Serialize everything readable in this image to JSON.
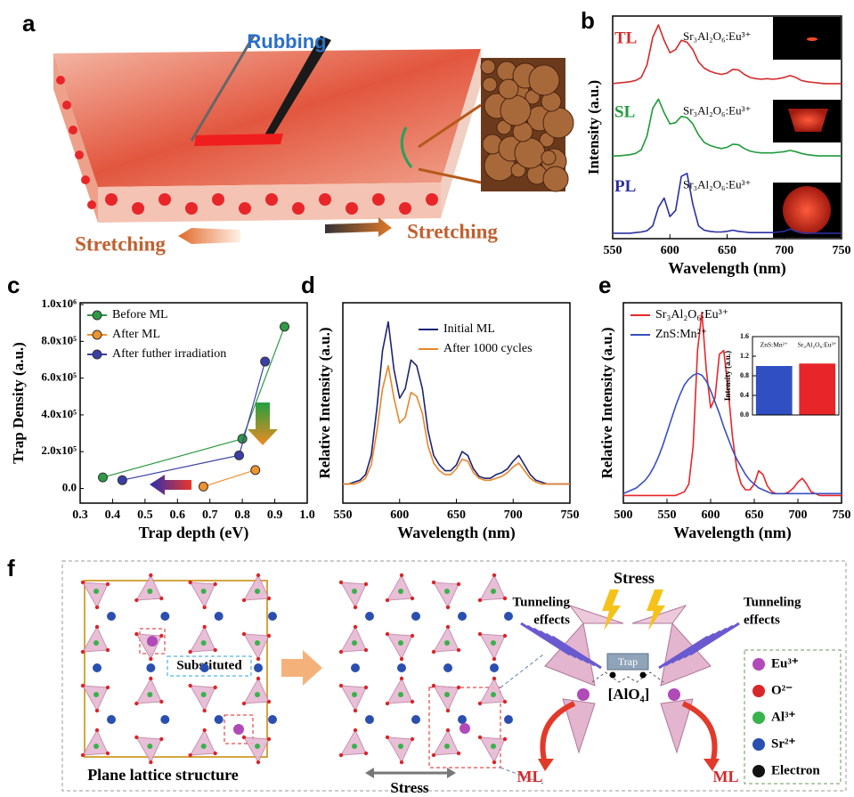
{
  "figure": {
    "panel_labels": [
      "a",
      "b",
      "c",
      "d",
      "e",
      "f"
    ],
    "a": {
      "rubbing": "Rubbing",
      "stretching_left": "Stretching",
      "stretching_right": "Stretching"
    },
    "f": {
      "substituted": "Substituted",
      "plane": "Plane lattice structure",
      "stress_bottom": "Stress",
      "stress_top": "Stress",
      "tunneling_left": [
        "Tunneling",
        "effects"
      ],
      "tunneling_right": [
        "Tunneling",
        "effects"
      ],
      "trap": "Trap",
      "unit": "[AlO₄]",
      "ml_left": "ML",
      "ml_right": "ML",
      "legend": [
        "Eu³⁺",
        "O²⁻",
        "Al³⁺",
        "Sr²⁺",
        "Electron"
      ]
    }
  },
  "chart_data": [
    {
      "type": "line",
      "xlabel": "Wavelength (nm)",
      "ylabel": "Intensity (a.u.)",
      "xlim": [
        550,
        750
      ],
      "xticks": [
        550,
        600,
        650,
        700,
        750
      ],
      "ylim": [
        0,
        1
      ],
      "x": [
        550,
        555,
        560,
        565,
        570,
        575,
        580,
        585,
        590,
        595,
        600,
        605,
        610,
        615,
        620,
        625,
        630,
        635,
        640,
        645,
        650,
        655,
        660,
        665,
        670,
        675,
        680,
        685,
        690,
        695,
        700,
        705,
        710,
        715,
        720,
        725,
        730,
        735,
        740,
        745,
        750
      ],
      "series": [
        {
          "name": "TL",
          "color": "#d42a2a",
          "annotation": "Sr₃Al₂O₆:Eu³⁺",
          "values": [
            0.05,
            0.06,
            0.07,
            0.08,
            0.1,
            0.15,
            0.35,
            0.8,
            1,
            0.75,
            0.55,
            0.6,
            0.75,
            0.72,
            0.6,
            0.4,
            0.3,
            0.25,
            0.22,
            0.2,
            0.22,
            0.28,
            0.27,
            0.2,
            0.15,
            0.13,
            0.12,
            0.13,
            0.12,
            0.13,
            0.15,
            0.18,
            0.15,
            0.1,
            0.08,
            0.07,
            0.06,
            0.05,
            0.05,
            0.05,
            0.05
          ]
        },
        {
          "name": "SL",
          "color": "#1f9a3a",
          "annotation": "Sr₃Al₂O₆:Eu³⁺",
          "values": [
            0.08,
            0.08,
            0.09,
            0.1,
            0.12,
            0.18,
            0.4,
            0.85,
            1,
            0.78,
            0.6,
            0.62,
            0.72,
            0.7,
            0.6,
            0.42,
            0.3,
            0.25,
            0.22,
            0.2,
            0.22,
            0.27,
            0.26,
            0.2,
            0.16,
            0.14,
            0.13,
            0.13,
            0.13,
            0.14,
            0.15,
            0.17,
            0.15,
            0.12,
            0.1,
            0.09,
            0.08,
            0.08,
            0.08,
            0.08,
            0.08
          ]
        },
        {
          "name": "PL",
          "color": "#2b2fa0",
          "annotation": "Sr₃Al₂O₆:Eu³⁺",
          "values": [
            0.03,
            0.03,
            0.03,
            0.03,
            0.04,
            0.05,
            0.07,
            0.15,
            0.45,
            0.6,
            0.3,
            0.4,
            0.95,
            1,
            0.5,
            0.15,
            0.08,
            0.06,
            0.05,
            0.05,
            0.06,
            0.08,
            0.06,
            0.05,
            0.04,
            0.04,
            0.04,
            0.04,
            0.04,
            0.05,
            0.06,
            0.1,
            0.06,
            0.04,
            0.03,
            0.03,
            0.03,
            0.03,
            0.03,
            0.03,
            0.03
          ]
        }
      ]
    },
    {
      "type": "line",
      "markers": true,
      "legend": "upper left",
      "xlabel": "Trap depth (eV)",
      "ylabel": "Trap Density (a.u.)",
      "xlim": [
        0.3,
        1.0
      ],
      "xticks": [
        0.3,
        0.4,
        0.5,
        0.6,
        0.7,
        0.8,
        0.9,
        {
          "value": 1,
          "label": "1.0"
        }
      ],
      "ylim": [
        -80000,
        1010000
      ],
      "yticks": [
        {
          "value": 0,
          "label": "0.0"
        },
        {
          "value": 200000,
          "label": "2.0x10⁵"
        },
        {
          "value": 400000,
          "label": "4.0x10⁵"
        },
        {
          "value": 600000,
          "label": "6.0x10⁵"
        },
        {
          "value": 800000,
          "label": "8.0x10⁵"
        },
        {
          "value": 1000000,
          "label": "1.0x10⁶"
        }
      ],
      "series": [
        {
          "name": "Before ML",
          "color": "#2e9a45",
          "x": [
            0.37,
            0.8,
            0.93
          ],
          "values": [
            60000,
            270000,
            880000
          ]
        },
        {
          "name": "After ML",
          "color": "#f0922e",
          "x": [
            0.68,
            0.84
          ],
          "values": [
            10000,
            100000
          ]
        },
        {
          "name": "After futher irradiation",
          "color": "#3a3fa8",
          "x": [
            0.43,
            0.79,
            0.87
          ],
          "values": [
            45000,
            180000,
            690000
          ]
        }
      ]
    },
    {
      "type": "line",
      "legend": "upper right",
      "xlabel": "Wavelength (nm)",
      "ylabel": "Relative Intensity (a.u.)",
      "xlim": [
        550,
        750
      ],
      "xticks": [
        550,
        600,
        650,
        700,
        750
      ],
      "ylim": [
        0,
        1.05
      ],
      "x": [
        550,
        555,
        560,
        565,
        570,
        575,
        580,
        585,
        590,
        595,
        600,
        605,
        610,
        615,
        620,
        625,
        630,
        635,
        640,
        645,
        650,
        655,
        660,
        665,
        670,
        675,
        680,
        685,
        690,
        695,
        700,
        705,
        710,
        715,
        720,
        725,
        730,
        735,
        740,
        745,
        750
      ],
      "series": [
        {
          "name": "Initial ML",
          "color": "#1d2375",
          "values": [
            0.1,
            0.1,
            0.11,
            0.12,
            0.15,
            0.25,
            0.5,
            0.8,
            0.95,
            0.7,
            0.55,
            0.6,
            0.75,
            0.72,
            0.6,
            0.38,
            0.25,
            0.2,
            0.17,
            0.17,
            0.2,
            0.27,
            0.25,
            0.18,
            0.14,
            0.13,
            0.13,
            0.15,
            0.16,
            0.18,
            0.22,
            0.25,
            0.2,
            0.15,
            0.12,
            0.11,
            0.1,
            0.1,
            0.1,
            0.1,
            0.1
          ]
        },
        {
          "name": "After 1000 cycles",
          "color": "#e8862a",
          "values": [
            0.1,
            0.1,
            0.1,
            0.11,
            0.13,
            0.2,
            0.38,
            0.6,
            0.72,
            0.55,
            0.42,
            0.45,
            0.58,
            0.56,
            0.47,
            0.3,
            0.21,
            0.17,
            0.15,
            0.15,
            0.18,
            0.23,
            0.22,
            0.16,
            0.13,
            0.12,
            0.12,
            0.13,
            0.14,
            0.16,
            0.19,
            0.21,
            0.17,
            0.13,
            0.11,
            0.1,
            0.1,
            0.1,
            0.1,
            0.1,
            0.1
          ]
        }
      ]
    },
    {
      "type": "line",
      "legend": "upper left",
      "xlabel": "Wavelength (nm)",
      "ylabel": "Relative Intensity (a.u.)",
      "xlim": [
        500,
        750
      ],
      "xticks": [
        500,
        550,
        600,
        650,
        700,
        750
      ],
      "ylim": [
        0,
        1.05
      ],
      "x": [
        500,
        505,
        510,
        515,
        520,
        525,
        530,
        535,
        540,
        545,
        550,
        555,
        560,
        565,
        570,
        575,
        580,
        585,
        590,
        595,
        600,
        605,
        610,
        615,
        620,
        625,
        630,
        635,
        640,
        645,
        650,
        655,
        660,
        665,
        670,
        675,
        680,
        685,
        690,
        695,
        700,
        705,
        710,
        715,
        720,
        725,
        730,
        735,
        740,
        745,
        750
      ],
      "series": [
        {
          "name": "Sr₃Al₂O₆:Eu³⁺",
          "color": "#e8262a",
          "values": [
            0.04,
            0.04,
            0.04,
            0.04,
            0.04,
            0.04,
            0.04,
            0.04,
            0.04,
            0.04,
            0.04,
            0.04,
            0.04,
            0.05,
            0.06,
            0.1,
            0.3,
            0.8,
            1,
            0.7,
            0.5,
            0.55,
            0.78,
            0.8,
            0.6,
            0.35,
            0.18,
            0.1,
            0.07,
            0.07,
            0.1,
            0.17,
            0.15,
            0.09,
            0.06,
            0.05,
            0.05,
            0.05,
            0.06,
            0.08,
            0.11,
            0.13,
            0.1,
            0.06,
            0.05,
            0.04,
            0.04,
            0.04,
            0.04,
            0.04,
            0.04
          ]
        },
        {
          "name": "ZnS:Mn²⁺",
          "color": "#3a4fc0",
          "values": [
            0.05,
            0.06,
            0.07,
            0.08,
            0.1,
            0.12,
            0.15,
            0.19,
            0.24,
            0.3,
            0.37,
            0.44,
            0.51,
            0.57,
            0.62,
            0.65,
            0.67,
            0.68,
            0.67,
            0.64,
            0.59,
            0.53,
            0.47,
            0.4,
            0.34,
            0.28,
            0.23,
            0.19,
            0.15,
            0.12,
            0.1,
            0.08,
            0.07,
            0.06,
            0.05,
            0.05,
            0.05,
            0.05,
            0.05,
            0.05,
            0.05,
            0.05,
            0.05,
            0.05,
            0.05,
            0.05,
            0.05,
            0.05,
            0.05,
            0.05,
            0.05
          ]
        }
      ]
    },
    {
      "type": "bar",
      "ylabel": "Intensity (a.u.)",
      "categories": [
        "ZnS:Mn²⁺",
        "Sr₃Al₂O₆:Eu³⁺"
      ],
      "values": [
        1,
        1.05
      ],
      "colors": [
        "#2f4fc2",
        "#e8262a"
      ],
      "ylim": [
        0,
        1.6
      ],
      "yticks": [
        {
          "value": 0,
          "label": "0.0"
        },
        0.4,
        0.8,
        1.2,
        1.6
      ]
    }
  ]
}
